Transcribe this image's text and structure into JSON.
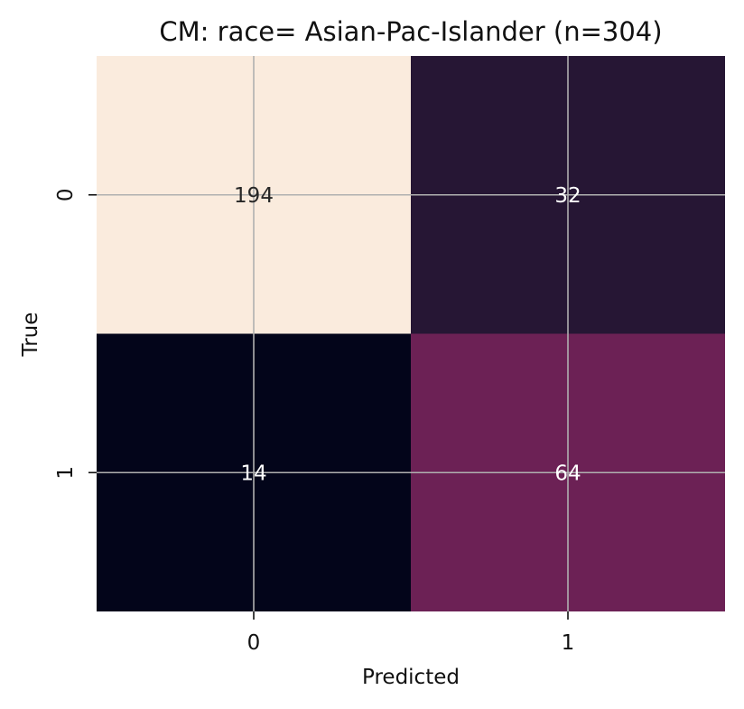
{
  "chart_data": {
    "type": "heatmap",
    "title": "CM: race= Asian-Pac-Islander (n=304)",
    "xlabel": "Predicted",
    "ylabel": "True",
    "x_categories": [
      "0",
      "1"
    ],
    "y_categories": [
      "0",
      "1"
    ],
    "values": [
      [
        194,
        32
      ],
      [
        14,
        64
      ]
    ],
    "colors": [
      [
        "#faebdd",
        "#261634"
      ],
      [
        "#03051a",
        "#6c2155"
      ]
    ],
    "text_colors": [
      [
        "#262626",
        "#ffffff"
      ],
      [
        "#ffffff",
        "#ffffff"
      ]
    ],
    "grid": true,
    "colorbar": false
  }
}
